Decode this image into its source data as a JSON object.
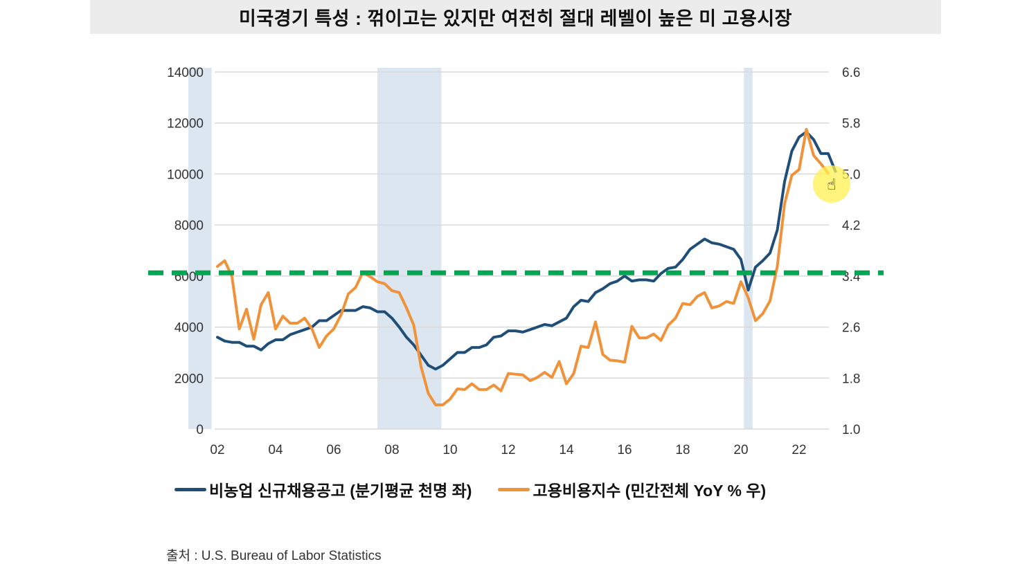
{
  "title": "미국경기 특성 : 꺾이고는 있지만 여전히 절대 레벨이 높은 미 고용시장",
  "source": "출처 : U.S. Bureau of Labor Statistics",
  "colors": {
    "blue": "#1f4e79",
    "orange": "#f0923a",
    "green": "#00a651",
    "recession": "#dce6f1",
    "grid": "#d9d9d9"
  },
  "chart_data": {
    "type": "line",
    "title": "미국경기 특성 : 꺾이고는 있지만 여전히 절대 레벨이 높은 미 고용시장",
    "x_ticks": [
      2002,
      2004,
      2006,
      2008,
      2010,
      2012,
      2014,
      2016,
      2018,
      2020,
      2022
    ],
    "x_tick_labels": [
      "02",
      "04",
      "06",
      "08",
      "10",
      "12",
      "14",
      "16",
      "18",
      "20",
      "22"
    ],
    "xlim": [
      2001,
      2023
    ],
    "y_left": {
      "ylim": [
        0,
        14000
      ],
      "ticks": [
        "0",
        "2000",
        "4000",
        "6000",
        "8000",
        "10000",
        "12000",
        "14000"
      ]
    },
    "y_right": {
      "ylim": [
        1.0,
        6.6
      ],
      "ticks": [
        "1.0",
        "1.8",
        "2.6",
        "3.4",
        "4.2",
        "5.0",
        "5.8",
        "6.6"
      ]
    },
    "recessions": [
      [
        2001.0,
        2001.8
      ],
      [
        2007.5,
        2009.7
      ],
      [
        2020.1,
        2020.4
      ]
    ],
    "reference_line": {
      "axis": "right",
      "value": 3.45,
      "style": "dashed"
    },
    "series": [
      {
        "name": "비농업 신규채용공고 (분기평균 천명 좌)",
        "axis": "left",
        "x_start": 2002.0,
        "step": 0.25,
        "values": [
          3600,
          3450,
          3400,
          3400,
          3250,
          3250,
          3100,
          3350,
          3500,
          3500,
          3700,
          3800,
          3900,
          4000,
          4250,
          4250,
          4450,
          4650,
          4650,
          4650,
          4800,
          4750,
          4600,
          4600,
          4350,
          4000,
          3600,
          3300,
          2900,
          2500,
          2350,
          2500,
          2750,
          3000,
          3000,
          3200,
          3200,
          3300,
          3600,
          3650,
          3850,
          3850,
          3800,
          3900,
          4000,
          4100,
          4050,
          4200,
          4350,
          4800,
          5050,
          5000,
          5350,
          5500,
          5700,
          5800,
          6000,
          5800,
          5850,
          5850,
          5800,
          6100,
          6300,
          6350,
          6650,
          7050,
          7250,
          7450,
          7300,
          7250,
          7150,
          7050,
          6650,
          5450,
          6350,
          6600,
          6900,
          7800,
          9700,
          10900,
          11450,
          11650,
          11350,
          10800,
          10800,
          10100
        ]
      },
      {
        "name": "고용비용지수 (민간전체 YoY % 우)",
        "axis": "right",
        "x_start": 2002.0,
        "step": 0.25,
        "values": [
          3.55,
          3.64,
          3.39,
          2.57,
          2.88,
          2.41,
          2.95,
          3.14,
          2.57,
          2.77,
          2.66,
          2.66,
          2.74,
          2.57,
          2.28,
          2.46,
          2.57,
          2.79,
          3.12,
          3.22,
          3.46,
          3.39,
          3.31,
          3.28,
          3.17,
          3.14,
          2.9,
          2.63,
          1.98,
          1.56,
          1.38,
          1.38,
          1.47,
          1.63,
          1.62,
          1.71,
          1.62,
          1.62,
          1.69,
          1.6,
          1.87,
          1.86,
          1.85,
          1.76,
          1.81,
          1.89,
          1.81,
          2.06,
          1.71,
          1.87,
          2.3,
          2.28,
          2.68,
          2.17,
          2.08,
          2.07,
          2.05,
          2.61,
          2.43,
          2.43,
          2.49,
          2.39,
          2.63,
          2.74,
          2.97,
          2.95,
          3.08,
          3.14,
          2.9,
          2.93,
          3.0,
          2.97,
          3.31,
          3.06,
          2.7,
          2.81,
          3.01,
          3.55,
          4.53,
          4.98,
          5.07,
          5.7,
          5.29,
          5.16,
          5.01
        ]
      }
    ],
    "legend": "bottom"
  }
}
